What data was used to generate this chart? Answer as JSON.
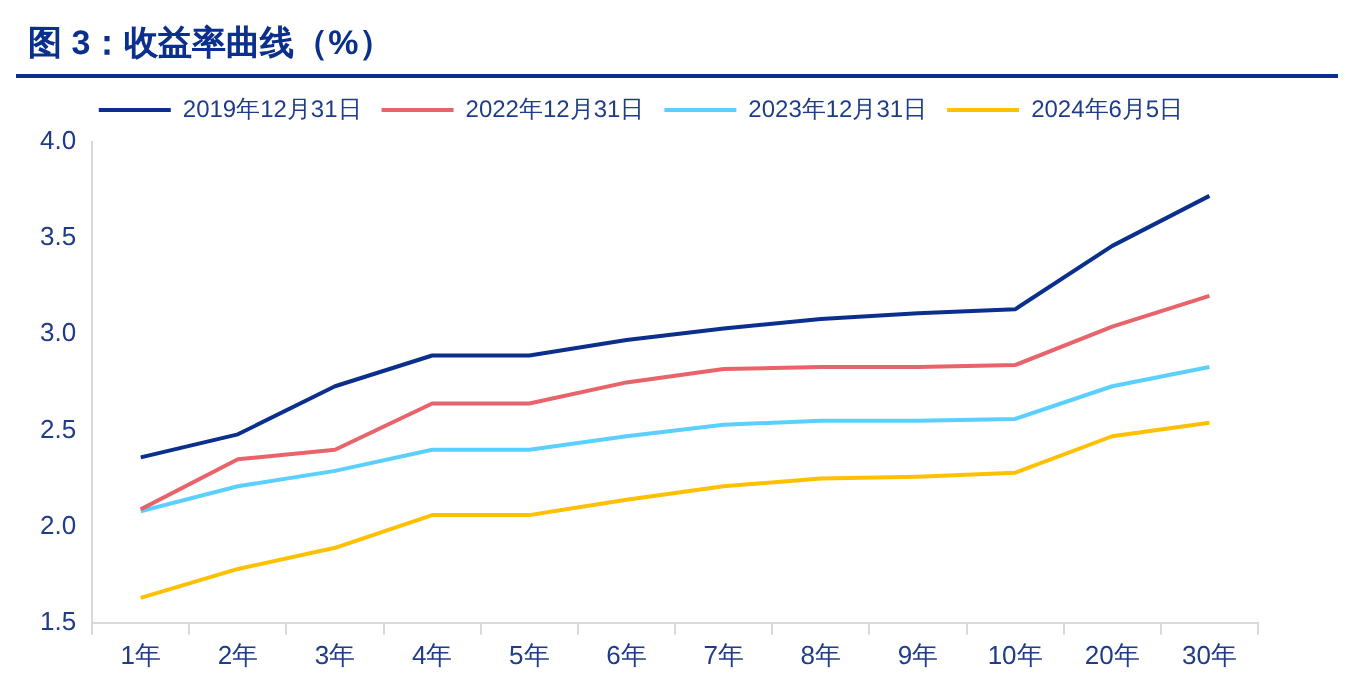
{
  "chart_data": {
    "type": "line",
    "title": "图 3：收益率曲线（%）",
    "categories": [
      "1年",
      "2年",
      "3年",
      "4年",
      "5年",
      "6年",
      "7年",
      "8年",
      "9年",
      "10年",
      "20年",
      "30年"
    ],
    "series": [
      {
        "name": "2019年12月31日",
        "color": "#0a2f8c",
        "values": [
          2.36,
          2.48,
          2.73,
          2.89,
          2.89,
          2.97,
          3.03,
          3.08,
          3.11,
          3.13,
          3.46,
          3.72
        ]
      },
      {
        "name": "2022年12月31日",
        "color": "#e8636a",
        "values": [
          2.09,
          2.35,
          2.4,
          2.64,
          2.64,
          2.75,
          2.82,
          2.83,
          2.83,
          2.84,
          3.04,
          3.2
        ]
      },
      {
        "name": "2023年12月31日",
        "color": "#5bd0ff",
        "values": [
          2.08,
          2.21,
          2.29,
          2.4,
          2.4,
          2.47,
          2.53,
          2.55,
          2.55,
          2.56,
          2.73,
          2.83
        ]
      },
      {
        "name": "2024年6月5日",
        "color": "#ffc000",
        "values": [
          1.63,
          1.78,
          1.89,
          2.06,
          2.06,
          2.14,
          2.21,
          2.25,
          2.26,
          2.28,
          2.47,
          2.54
        ]
      }
    ],
    "ylim": [
      1.5,
      4.0
    ],
    "yticks": [
      1.5,
      {
        "value": 2,
        "label": "2.0"
      },
      2.5,
      {
        "value": 3,
        "label": "3.0"
      },
      3.5,
      {
        "value": 4,
        "label": "4.0"
      }
    ],
    "grid": false,
    "legend": "top",
    "marker": "none",
    "line_style": "solid"
  }
}
